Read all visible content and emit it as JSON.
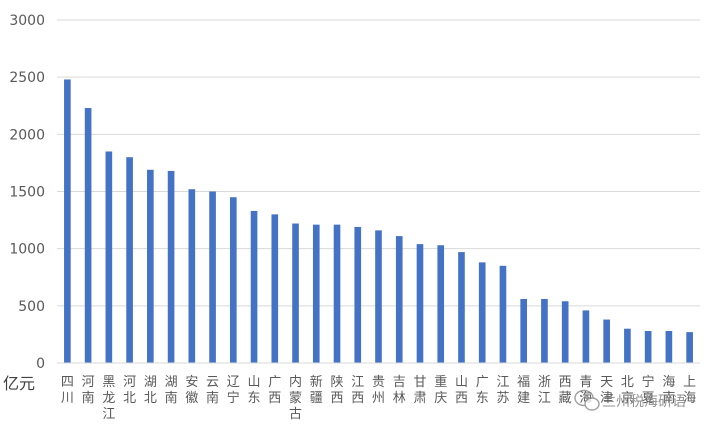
{
  "chart_data": {
    "type": "bar",
    "ylabel": "亿元",
    "ylim": [
      0,
      3000
    ],
    "yticks": [
      0,
      500,
      1000,
      1500,
      2000,
      2500,
      3000
    ],
    "grid": true,
    "bar_color": "#4472C4",
    "categories": [
      "四川",
      "河南",
      "黑龙江",
      "河北",
      "湖北",
      "湖南",
      "安徽",
      "云南",
      "辽宁",
      "山东",
      "广西",
      "内蒙古",
      "新疆",
      "陕西",
      "江西",
      "贵州",
      "吉林",
      "甘肃",
      "重庆",
      "山西",
      "广东",
      "江苏",
      "福建",
      "浙江",
      "西藏",
      "青海",
      "天津",
      "北京",
      "宁夏",
      "海南",
      "上海"
    ],
    "values": [
      2480,
      2230,
      1850,
      1800,
      1690,
      1680,
      1520,
      1500,
      1450,
      1330,
      1300,
      1220,
      1210,
      1210,
      1190,
      1160,
      1110,
      1040,
      1030,
      970,
      880,
      850,
      560,
      560,
      540,
      460,
      380,
      300,
      280,
      280,
      270
    ]
  },
  "watermark": {
    "text": "兰州税海研语",
    "icon": "wechat-icon"
  }
}
